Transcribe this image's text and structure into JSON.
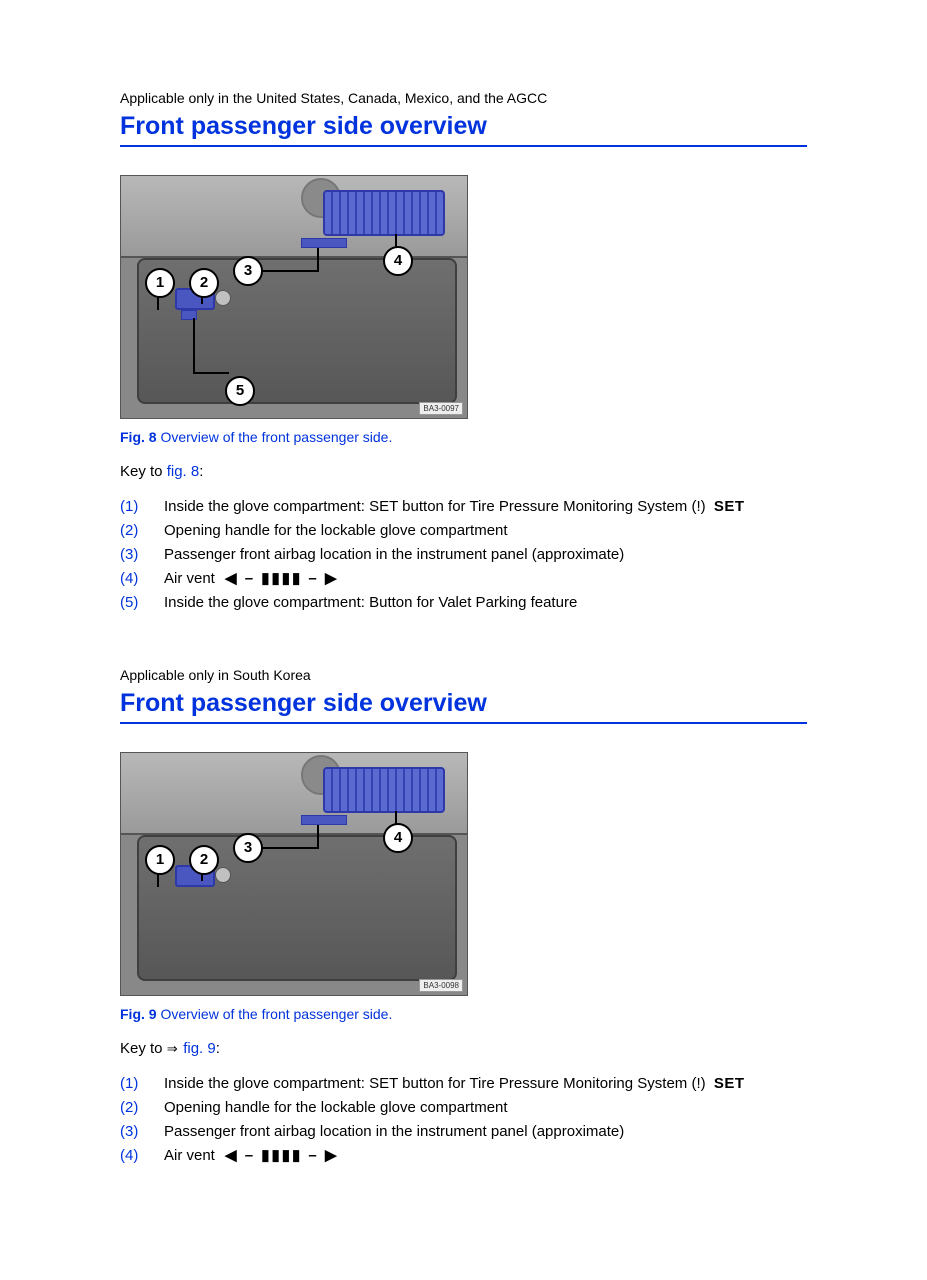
{
  "sections": [
    {
      "applicability": "Applicable only in the United States, Canada, Mexico, and the AGCC",
      "title": "Front passenger side overview",
      "figure": {
        "label": "Fig. 8",
        "desc": "Overview of the front passenger side.",
        "photo_id": "BA3-0097",
        "callouts": [
          "1",
          "2",
          "3",
          "4",
          "5"
        ],
        "has_callout_5": true
      },
      "key_intro_prefix": "Key to ",
      "key_intro_arrow": "",
      "key_intro_link": "fig. 8",
      "key_intro_suffix": ":",
      "items": [
        {
          "num": "(1)",
          "text": "Inside the glove compartment: SET button for Tire Pressure Monitoring System",
          "has_set_symbol": true,
          "has_vent_symbol": false
        },
        {
          "num": "(2)",
          "text": "Opening handle for the lockable glove compartment",
          "has_set_symbol": false,
          "has_vent_symbol": false
        },
        {
          "num": "(3)",
          "text": "Passenger front airbag location in the instrument panel (approximate)",
          "has_set_symbol": false,
          "has_vent_symbol": false
        },
        {
          "num": "(4)",
          "text": "Air vent",
          "has_set_symbol": false,
          "has_vent_symbol": true
        },
        {
          "num": "(5)",
          "text": "Inside the glove compartment: Button for Valet Parking feature",
          "has_set_symbol": false,
          "has_vent_symbol": false
        }
      ]
    },
    {
      "applicability": "Applicable only in South Korea",
      "title": "Front passenger side overview",
      "figure": {
        "label": "Fig. 9",
        "desc": "Overview of the front passenger side.",
        "photo_id": "BA3-0098",
        "callouts": [
          "1",
          "2",
          "3",
          "4"
        ],
        "has_callout_5": false
      },
      "key_intro_prefix": "Key to ",
      "key_intro_arrow": "⇒ ",
      "key_intro_link": "fig. 9",
      "key_intro_suffix": ":",
      "items": [
        {
          "num": "(1)",
          "text": "Inside the glove compartment: SET button for Tire Pressure Monitoring System",
          "has_set_symbol": true,
          "has_vent_symbol": false
        },
        {
          "num": "(2)",
          "text": "Opening handle for the lockable glove compartment",
          "has_set_symbol": false,
          "has_vent_symbol": false
        },
        {
          "num": "(3)",
          "text": "Passenger front airbag location in the instrument panel (approximate)",
          "has_set_symbol": false,
          "has_vent_symbol": false
        },
        {
          "num": "(4)",
          "text": "Air vent",
          "has_set_symbol": false,
          "has_vent_symbol": true
        }
      ]
    }
  ],
  "symbols": {
    "tpms_icon": "(!)",
    "set_label": "SET",
    "vent_glyph": "◀ – ▮▮▮▮ – ▶"
  },
  "colors": {
    "heading": "#0033dd",
    "link": "#0033dd",
    "body_text": "#000000",
    "figure_overlay": "#4a57c0"
  }
}
